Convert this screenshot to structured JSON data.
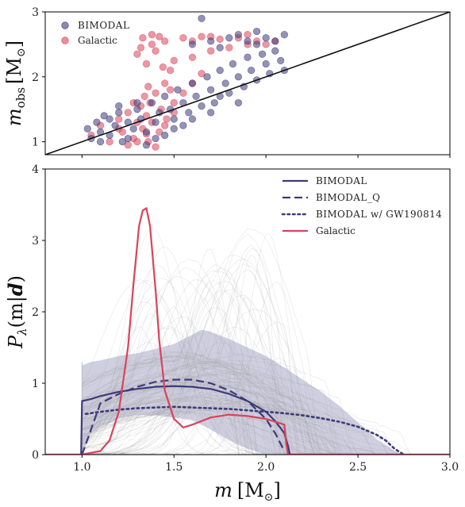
{
  "chart_data": [
    {
      "type": "scatter",
      "xlim": [
        0.8,
        3.0
      ],
      "ylim": [
        0.8,
        3.0
      ],
      "yticks": [
        "1",
        "2",
        "3"
      ],
      "ylabel": {
        "var": "m",
        "sub": "obs",
        "unit": "[M",
        "unit_sub": "⊙",
        "close": "]"
      },
      "legend": {
        "placement": "top-left",
        "entries": [
          "BIMODAL",
          "Galactic"
        ]
      },
      "colors": {
        "bimodal": "#3d3a7a",
        "galactic": "#d9435a"
      },
      "diagonal_line": {
        "from": [
          0.8,
          0.8
        ],
        "to": [
          3.0,
          3.0
        ]
      },
      "series": [
        {
          "name": "BIMODAL",
          "points": [
            [
              1.03,
              1.2
            ],
            [
              1.05,
              1.05
            ],
            [
              1.08,
              1.3
            ],
            [
              1.1,
              1.15
            ],
            [
              1.12,
              1.4
            ],
            [
              1.15,
              1.1
            ],
            [
              1.18,
              1.25
            ],
            [
              1.2,
              1.45
            ],
            [
              1.22,
              1.0
            ],
            [
              1.25,
              1.3
            ],
            [
              1.28,
              1.2
            ],
            [
              1.3,
              1.5
            ],
            [
              1.32,
              1.35
            ],
            [
              1.35,
              1.15
            ],
            [
              1.38,
              1.6
            ],
            [
              1.4,
              1.3
            ],
            [
              1.42,
              1.45
            ],
            [
              1.45,
              1.7
            ],
            [
              1.48,
              1.5
            ],
            [
              1.5,
              1.35
            ],
            [
              1.52,
              1.8
            ],
            [
              1.55,
              1.6
            ],
            [
              1.58,
              1.45
            ],
            [
              1.6,
              1.9
            ],
            [
              1.62,
              1.7
            ],
            [
              1.65,
              1.55
            ],
            [
              1.68,
              2.0
            ],
            [
              1.7,
              1.8
            ],
            [
              1.72,
              1.6
            ],
            [
              1.75,
              2.1
            ],
            [
              1.78,
              1.9
            ],
            [
              1.8,
              1.75
            ],
            [
              1.82,
              2.2
            ],
            [
              1.85,
              2.0
            ],
            [
              1.88,
              1.85
            ],
            [
              1.9,
              2.3
            ],
            [
              1.92,
              2.1
            ],
            [
              1.95,
              1.95
            ],
            [
              1.98,
              2.35
            ],
            [
              2.0,
              2.2
            ],
            [
              2.02,
              2.05
            ],
            [
              2.05,
              2.4
            ],
            [
              2.08,
              2.25
            ],
            [
              2.1,
              2.1
            ],
            [
              1.6,
              2.5
            ],
            [
              1.7,
              2.55
            ],
            [
              1.8,
              2.6
            ],
            [
              1.9,
              2.55
            ],
            [
              2.0,
              2.6
            ],
            [
              2.1,
              2.65
            ],
            [
              1.65,
              2.9
            ],
            [
              1.85,
              2.65
            ],
            [
              1.95,
              2.5
            ],
            [
              1.55,
              1.25
            ],
            [
              1.45,
              1.1
            ],
            [
              1.35,
              0.95
            ],
            [
              1.25,
              1.05
            ],
            [
              1.15,
              1.35
            ],
            [
              1.1,
              1.0
            ],
            [
              1.7,
              1.45
            ],
            [
              1.75,
              1.7
            ],
            [
              1.85,
              1.6
            ],
            [
              1.6,
              1.35
            ],
            [
              1.5,
              1.2
            ],
            [
              1.4,
              1.05
            ],
            [
              2.05,
              2.55
            ],
            [
              1.75,
              2.45
            ],
            [
              1.95,
              2.7
            ],
            [
              1.3,
              1.6
            ],
            [
              1.2,
              1.55
            ]
          ]
        },
        {
          "name": "Galactic",
          "points": [
            [
              1.05,
              1.1
            ],
            [
              1.1,
              1.25
            ],
            [
              1.15,
              1.0
            ],
            [
              1.2,
              1.35
            ],
            [
              1.22,
              1.15
            ],
            [
              1.25,
              1.45
            ],
            [
              1.28,
              1.05
            ],
            [
              1.3,
              1.3
            ],
            [
              1.32,
              1.55
            ],
            [
              1.33,
              1.2
            ],
            [
              1.35,
              1.4
            ],
            [
              1.36,
              1.0
            ],
            [
              1.37,
              1.6
            ],
            [
              1.38,
              1.3
            ],
            [
              1.4,
              1.75
            ],
            [
              1.42,
              1.15
            ],
            [
              1.43,
              1.5
            ],
            [
              1.45,
              1.9
            ],
            [
              1.46,
              1.35
            ],
            [
              1.48,
              2.1
            ],
            [
              1.5,
              1.6
            ],
            [
              1.3,
              2.35
            ],
            [
              1.33,
              2.6
            ],
            [
              1.38,
              2.65
            ],
            [
              1.42,
              2.62
            ],
            [
              1.45,
              2.55
            ],
            [
              1.35,
              2.2
            ],
            [
              1.4,
              2.4
            ],
            [
              1.36,
              1.85
            ],
            [
              1.34,
              1.7
            ],
            [
              1.55,
              2.6
            ],
            [
              1.65,
              2.62
            ],
            [
              1.75,
              2.58
            ],
            [
              1.85,
              2.6
            ],
            [
              1.95,
              2.55
            ],
            [
              2.0,
              2.5
            ],
            [
              1.7,
              2.4
            ],
            [
              1.8,
              2.45
            ],
            [
              1.9,
              2.5
            ],
            [
              1.6,
              2.3
            ],
            [
              1.5,
              2.25
            ],
            [
              1.55,
              1.75
            ],
            [
              1.6,
              1.9
            ],
            [
              1.65,
              2.05
            ],
            [
              1.3,
              1.0
            ],
            [
              1.25,
              0.95
            ],
            [
              1.4,
              0.92
            ],
            [
              1.35,
              1.12
            ],
            [
              1.45,
              1.25
            ],
            [
              1.5,
              1.45
            ],
            [
              1.2,
              1.2
            ],
            [
              1.38,
              2.5
            ],
            [
              1.32,
              2.45
            ],
            [
              1.44,
              2.15
            ],
            [
              1.48,
              1.8
            ],
            [
              1.6,
              2.55
            ],
            [
              1.7,
              2.62
            ],
            [
              1.9,
              2.65
            ],
            [
              2.05,
              2.55
            ],
            [
              1.28,
              1.6
            ]
          ]
        }
      ]
    },
    {
      "type": "line",
      "xlim": [
        0.8,
        3.0
      ],
      "ylim": [
        0,
        4
      ],
      "xticks": [
        "1.0",
        "1.5",
        "2.0",
        "2.5",
        "3.0"
      ],
      "yticks": [
        "0",
        "1",
        "2",
        "3",
        "4"
      ],
      "xlabel": {
        "var": "m",
        "unit": "[M",
        "unit_sub": "⊙",
        "close": "]"
      },
      "ylabel": {
        "var": "P",
        "sub": "λ",
        "body": "(m|",
        "bold": "d",
        "close": ")"
      },
      "legend": {
        "placement": "top-right",
        "entries": [
          "BIMODAL",
          "BIMODAL_Q",
          "BIMODAL w/ GW190814",
          "Galactic"
        ]
      },
      "colors": {
        "bimodal": "#3d3a7a",
        "galactic": "#d9435a",
        "band": "#a9a7c6",
        "traces": "#9a9a9a"
      },
      "credible_band": {
        "x": [
          1.0,
          1.05,
          1.1,
          1.2,
          1.3,
          1.4,
          1.5,
          1.6,
          1.65,
          1.7,
          1.8,
          1.9,
          2.0,
          2.1,
          2.2,
          2.3,
          2.4,
          2.5,
          2.6,
          2.7,
          2.75
        ],
        "upper": [
          1.25,
          1.3,
          1.32,
          1.38,
          1.42,
          1.48,
          1.55,
          1.68,
          1.75,
          1.72,
          1.62,
          1.5,
          1.38,
          1.22,
          1.05,
          0.88,
          0.68,
          0.45,
          0.22,
          0.05,
          0.0
        ],
        "lower": [
          0.0,
          0.3,
          0.4,
          0.5,
          0.55,
          0.55,
          0.52,
          0.48,
          0.42,
          0.35,
          0.2,
          0.08,
          0.0,
          0.0,
          0.0,
          0.0,
          0.0,
          0.0,
          0.0,
          0.0,
          0.0
        ]
      },
      "series": [
        {
          "name": "BIMODAL",
          "style": "solid",
          "x": [
            0.8,
            0.995,
            1.0,
            1.05,
            1.1,
            1.2,
            1.3,
            1.4,
            1.5,
            1.6,
            1.7,
            1.8,
            1.9,
            2.0,
            2.05,
            2.1,
            2.12,
            2.13,
            3.0
          ],
          "y": [
            0.0,
            0.0,
            0.75,
            0.78,
            0.82,
            0.88,
            0.92,
            0.95,
            0.96,
            0.95,
            0.92,
            0.85,
            0.75,
            0.6,
            0.47,
            0.3,
            0.12,
            0.0,
            0.0
          ]
        },
        {
          "name": "BIMODAL_Q",
          "style": "dashed",
          "x": [
            1.0,
            1.1,
            1.2,
            1.3,
            1.4,
            1.5,
            1.6,
            1.7,
            1.8,
            1.9,
            2.0,
            2.05,
            2.1
          ],
          "y": [
            0.0,
            0.72,
            0.85,
            0.95,
            1.02,
            1.05,
            1.05,
            1.0,
            0.9,
            0.75,
            0.5,
            0.3,
            0.05
          ]
        },
        {
          "name": "BIMODAL w/ GW190814",
          "style": "dotted",
          "x": [
            1.02,
            1.1,
            1.2,
            1.3,
            1.4,
            1.5,
            1.6,
            1.7,
            1.8,
            1.9,
            2.0,
            2.1,
            2.2,
            2.3,
            2.4,
            2.5,
            2.6,
            2.65,
            2.7,
            2.75
          ],
          "y": [
            0.57,
            0.6,
            0.63,
            0.65,
            0.66,
            0.67,
            0.66,
            0.65,
            0.64,
            0.62,
            0.6,
            0.58,
            0.55,
            0.51,
            0.46,
            0.39,
            0.28,
            0.2,
            0.08,
            0.0
          ]
        },
        {
          "name": "Galactic",
          "style": "solid",
          "x": [
            0.8,
            1.0,
            1.1,
            1.15,
            1.2,
            1.25,
            1.28,
            1.31,
            1.33,
            1.35,
            1.37,
            1.4,
            1.42,
            1.45,
            1.5,
            1.55,
            1.6,
            1.7,
            1.8,
            1.9,
            2.0,
            2.1,
            2.11,
            2.12,
            3.0
          ],
          "y": [
            0.0,
            0.0,
            0.05,
            0.2,
            0.6,
            1.5,
            2.4,
            3.2,
            3.42,
            3.45,
            3.2,
            2.3,
            1.6,
            0.9,
            0.5,
            0.38,
            0.42,
            0.52,
            0.56,
            0.54,
            0.5,
            0.42,
            0.15,
            0.0,
            0.0
          ]
        }
      ]
    }
  ]
}
